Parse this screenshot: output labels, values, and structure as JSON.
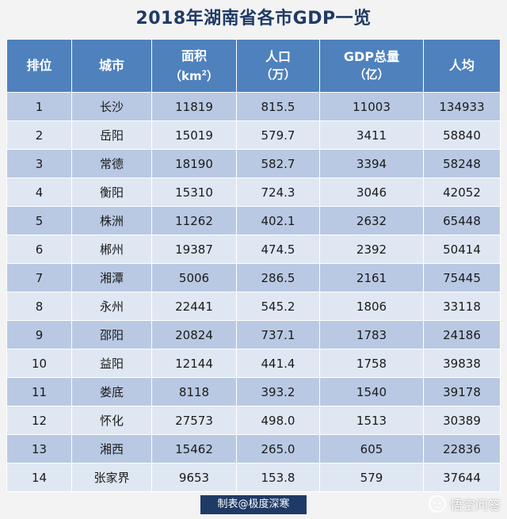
{
  "title": "2018年湖南省各市GDP一览",
  "table": {
    "headers": [
      {
        "label": "排位",
        "sub": ""
      },
      {
        "label": "城市",
        "sub": ""
      },
      {
        "label": "面积",
        "sub_open": "（km",
        "sub_sup": "2",
        "sub_close": "）"
      },
      {
        "label": "人口",
        "sub": "（万）"
      },
      {
        "label": "GDP总量",
        "sub": "（亿）"
      },
      {
        "label": "人均",
        "sub": ""
      }
    ],
    "rows": [
      [
        "1",
        "长沙",
        "11819",
        "815.5",
        "11003",
        "134933"
      ],
      [
        "2",
        "岳阳",
        "15019",
        "579.7",
        "3411",
        "58840"
      ],
      [
        "3",
        "常德",
        "18190",
        "582.7",
        "3394",
        "58248"
      ],
      [
        "4",
        "衡阳",
        "15310",
        "724.3",
        "3046",
        "42052"
      ],
      [
        "5",
        "株洲",
        "11262",
        "402.1",
        "2632",
        "65448"
      ],
      [
        "6",
        "郴州",
        "19387",
        "474.5",
        "2392",
        "50414"
      ],
      [
        "7",
        "湘潭",
        "5006",
        "286.5",
        "2161",
        "75445"
      ],
      [
        "8",
        "永州",
        "22441",
        "545.2",
        "1806",
        "33118"
      ],
      [
        "9",
        "邵阳",
        "20824",
        "737.1",
        "1783",
        "24186"
      ],
      [
        "10",
        "益阳",
        "12144",
        "441.4",
        "1758",
        "39838"
      ],
      [
        "11",
        "娄底",
        "8118",
        "393.2",
        "1540",
        "39178"
      ],
      [
        "12",
        "怀化",
        "27573",
        "498.0",
        "1513",
        "30389"
      ],
      [
        "13",
        "湘西",
        "15462",
        "265.0",
        "605",
        "22836"
      ],
      [
        "14",
        "张家界",
        "9653",
        "153.8",
        "579",
        "37644"
      ]
    ]
  },
  "credit": "制表@极度深寒",
  "watermark": {
    "text": "悟空问答",
    "icon": "wukong-logo-icon"
  },
  "colors": {
    "title": "#1f3a66",
    "header_bg": "#4f81bd",
    "row_odd": "#b9c9e3",
    "row_even": "#dfe7f3",
    "credit_bg": "#1f3a66"
  }
}
